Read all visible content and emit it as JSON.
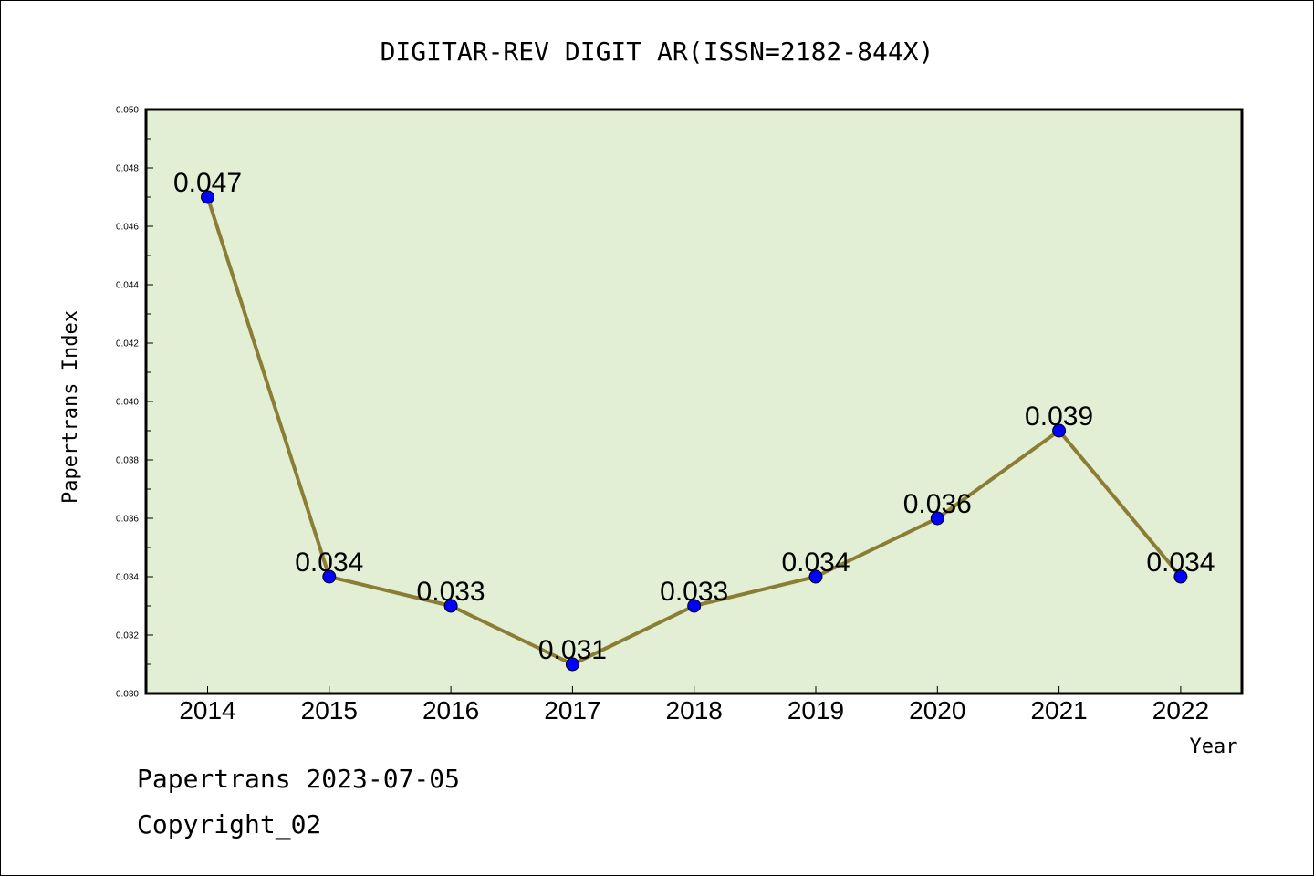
{
  "chart_data": {
    "type": "line",
    "title": "DIGITAR-REV DIGIT AR(ISSN=2182-844X)",
    "xlabel": "Year",
    "ylabel": "Papertrans Index",
    "categories": [
      "2014",
      "2015",
      "2016",
      "2017",
      "2018",
      "2019",
      "2020",
      "2021",
      "2022"
    ],
    "values": [
      0.047,
      0.034,
      0.033,
      0.031,
      0.033,
      0.034,
      0.036,
      0.039,
      0.034
    ],
    "data_labels": [
      "0.047",
      "0.034",
      "0.033",
      "0.031",
      "0.033",
      "0.034",
      "0.036",
      "0.039",
      "0.034"
    ],
    "ylim": [
      0.03,
      0.05
    ],
    "yticks": [
      "0.030",
      "0.032",
      "0.034",
      "0.036",
      "0.038",
      "0.040",
      "0.042",
      "0.044",
      "0.046",
      "0.048",
      "0.050"
    ],
    "grid": false,
    "colors": {
      "plot_background": "#e2efd5",
      "line": "#8b7d34",
      "marker": "#0000ff"
    }
  },
  "footer": {
    "date_line": "Papertrans 2023-07-05",
    "copyright": "Copyright_02"
  }
}
